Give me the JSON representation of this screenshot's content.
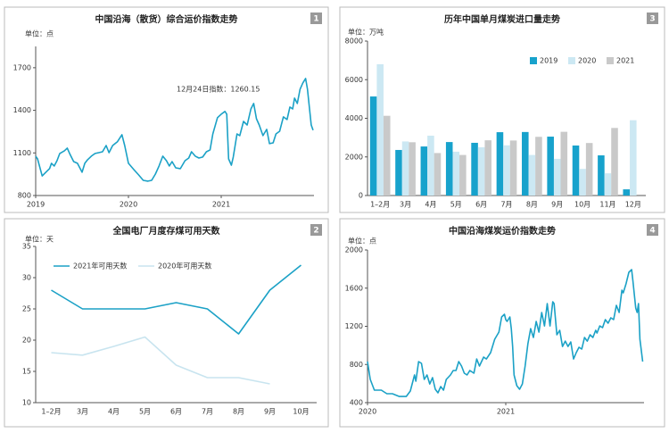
{
  "chart_data": [
    {
      "type": "line",
      "title": "中国沿海（散货）综合运价指数走势",
      "panel_label": "1",
      "unit": "单位：点",
      "annotation": "12月24日指数：1260.15",
      "x": [
        2019.0,
        2019.02,
        2019.07,
        2019.11,
        2019.15,
        2019.17,
        2019.2,
        2019.23,
        2019.26,
        2019.31,
        2019.34,
        2019.37,
        2019.41,
        2019.45,
        2019.5,
        2019.53,
        2019.56,
        2019.6,
        2019.64,
        2019.68,
        2019.72,
        2019.76,
        2019.79,
        2019.83,
        2019.88,
        2019.93,
        2019.96,
        2020.0,
        2020.06,
        2020.11,
        2020.16,
        2020.21,
        2020.25,
        2020.29,
        2020.33,
        2020.37,
        2020.41,
        2020.44,
        2020.47,
        2020.51,
        2020.56,
        2020.61,
        2020.65,
        2020.68,
        2020.72,
        2020.76,
        2020.8,
        2020.84,
        2020.88,
        2020.91,
        2020.96,
        2021.0,
        2021.04,
        2021.06,
        2021.08,
        2021.11,
        2021.13,
        2021.17,
        2021.2,
        2021.24,
        2021.28,
        2021.32,
        2021.35,
        2021.38,
        2021.41,
        2021.45,
        2021.49,
        2021.52,
        2021.56,
        2021.59,
        2021.63,
        2021.67,
        2021.71,
        2021.74,
        2021.77,
        2021.79,
        2021.82,
        2021.85,
        2021.88,
        2021.91,
        2021.93,
        2021.95,
        2021.97,
        2021.99
      ],
      "series": [
        {
          "name": "综合运价指数",
          "color": "#1ba1c6",
          "values": [
            1077,
            1058,
            938,
            964,
            990,
            1027,
            1008,
            1045,
            1096,
            1115,
            1134,
            1090,
            1039,
            1027,
            964,
            1027,
            1052,
            1077,
            1096,
            1102,
            1108,
            1152,
            1102,
            1152,
            1178,
            1228,
            1152,
            1027,
            982,
            945,
            907,
            901,
            907,
            951,
            1008,
            1077,
            1045,
            1008,
            1039,
            995,
            989,
            1045,
            1064,
            1108,
            1077,
            1064,
            1071,
            1108,
            1121,
            1234,
            1348,
            1373,
            1392,
            1373,
            1058,
            1014,
            1071,
            1234,
            1222,
            1322,
            1297,
            1410,
            1448,
            1341,
            1297,
            1222,
            1266,
            1165,
            1171,
            1234,
            1253,
            1354,
            1335,
            1423,
            1410,
            1486,
            1448,
            1549,
            1593,
            1624,
            1549,
            1423,
            1297,
            1260.15
          ]
        }
      ],
      "xlim": [
        2019,
        2022
      ],
      "xticks": [
        2019,
        2020,
        2021
      ],
      "ylim": [
        800,
        1850
      ],
      "yticks": [
        800,
        1100,
        1400,
        1700
      ],
      "grid": false
    },
    {
      "type": "line",
      "title": "全国电厂月度存煤可用天数",
      "panel_label": "2",
      "unit": "单位：天",
      "categories": [
        "1–2月",
        "3月",
        "4月",
        "5月",
        "6月",
        "7月",
        "8月",
        "9月",
        "10月"
      ],
      "series": [
        {
          "name": "2021年可用天数",
          "color": "#1ba1c6",
          "values": [
            28,
            25,
            25,
            25,
            26,
            25,
            21,
            28,
            32
          ]
        },
        {
          "name": "2020年可用天数",
          "color": "#c8e4ef",
          "values": [
            18,
            17.6,
            19,
            20.5,
            16,
            14,
            14,
            13,
            null
          ]
        }
      ],
      "ylim": [
        10,
        35
      ],
      "yticks": [
        10,
        15,
        20,
        25,
        30,
        35
      ],
      "grid": false,
      "legend": "upper left"
    },
    {
      "type": "bar",
      "title": "历年中国单月煤炭进口量走势",
      "panel_label": "3",
      "unit": "单位：万吨",
      "categories": [
        "1–2月",
        "3月",
        "4月",
        "5月",
        "6月",
        "7月",
        "8月",
        "9月",
        "10月",
        "11月",
        "12月"
      ],
      "series": [
        {
          "name": "2019",
          "color": "#17a2cc",
          "values": [
            5130,
            2360,
            2540,
            2770,
            2730,
            3280,
            3290,
            3050,
            2590,
            2080,
            320
          ]
        },
        {
          "name": "2020",
          "color": "#cce8f3",
          "values": [
            6800,
            2800,
            3100,
            2270,
            2500,
            2600,
            2100,
            1900,
            1380,
            1150,
            3900
          ]
        },
        {
          "name": "2021",
          "color": "#c9c9c9",
          "values": [
            4130,
            2760,
            2200,
            2100,
            2860,
            2850,
            3040,
            3300,
            2720,
            3500,
            null
          ]
        }
      ],
      "ylim": [
        0,
        8000
      ],
      "yticks": [
        0,
        2000,
        4000,
        6000,
        8000
      ],
      "grid": false,
      "legend": "upper right"
    },
    {
      "type": "line",
      "title": "中国沿海煤炭运价指数走势",
      "panel_label": "4",
      "unit": "单位：点",
      "x": [
        2020.0,
        2020.02,
        2020.05,
        2020.1,
        2020.14,
        2020.18,
        2020.23,
        2020.28,
        2020.31,
        2020.34,
        2020.35,
        2020.37,
        2020.39,
        2020.41,
        2020.43,
        2020.45,
        2020.47,
        2020.49,
        2020.51,
        2020.53,
        2020.55,
        2020.57,
        2020.6,
        2020.62,
        2020.64,
        2020.66,
        2020.68,
        2020.7,
        2020.72,
        2020.74,
        2020.77,
        2020.79,
        2020.81,
        2020.84,
        2020.86,
        2020.89,
        2020.92,
        2020.95,
        2020.97,
        2020.99,
        2021.0,
        2021.01,
        2021.03,
        2021.04,
        2021.05,
        2021.06,
        2021.08,
        2021.1,
        2021.12,
        2021.14,
        2021.16,
        2021.18,
        2021.2,
        2021.22,
        2021.24,
        2021.26,
        2021.28,
        2021.3,
        2021.32,
        2021.34,
        2021.35,
        2021.37,
        2021.39,
        2021.41,
        2021.43,
        2021.45,
        2021.47,
        2021.49,
        2021.51,
        2021.53,
        2021.55,
        2021.57,
        2021.59,
        2021.61,
        2021.63,
        2021.65,
        2021.66,
        2021.68,
        2021.7,
        2021.72,
        2021.74,
        2021.76,
        2021.78,
        2021.8,
        2021.82,
        2021.84,
        2021.85,
        2021.87,
        2021.89,
        2021.91,
        2021.92,
        2021.94,
        2021.95,
        2021.96,
        2021.97,
        2021.99
      ],
      "series": [
        {
          "name": "煤炭运价指数",
          "color": "#1ba1c6",
          "values": [
            830,
            643,
            531,
            531,
            494,
            494,
            465,
            465,
            522,
            690,
            625,
            830,
            812,
            643,
            690,
            596,
            662,
            540,
            503,
            568,
            531,
            643,
            690,
            737,
            737,
            830,
            784,
            709,
            690,
            737,
            709,
            858,
            784,
            877,
            858,
            924,
            1064,
            1139,
            1298,
            1326,
            1270,
            1251,
            1298,
            1176,
            989,
            690,
            578,
            540,
            596,
            784,
            1017,
            1176,
            1083,
            1251,
            1139,
            1345,
            1204,
            1438,
            1204,
            1457,
            1438,
            1111,
            1158,
            989,
            1045,
            989,
            1036,
            858,
            924,
            980,
            961,
            1083,
            1045,
            1111,
            1083,
            1158,
            1130,
            1204,
            1186,
            1270,
            1233,
            1289,
            1270,
            1420,
            1345,
            1579,
            1551,
            1644,
            1766,
            1794,
            1672,
            1392,
            1345,
            1438,
            1064,
            830
          ]
        }
      ],
      "xlim": [
        2020,
        2022
      ],
      "xticks": [
        2020,
        2021
      ],
      "ylim": [
        400,
        2000
      ],
      "yticks": [
        400,
        800,
        1200,
        1600,
        2000
      ],
      "grid": false
    }
  ]
}
